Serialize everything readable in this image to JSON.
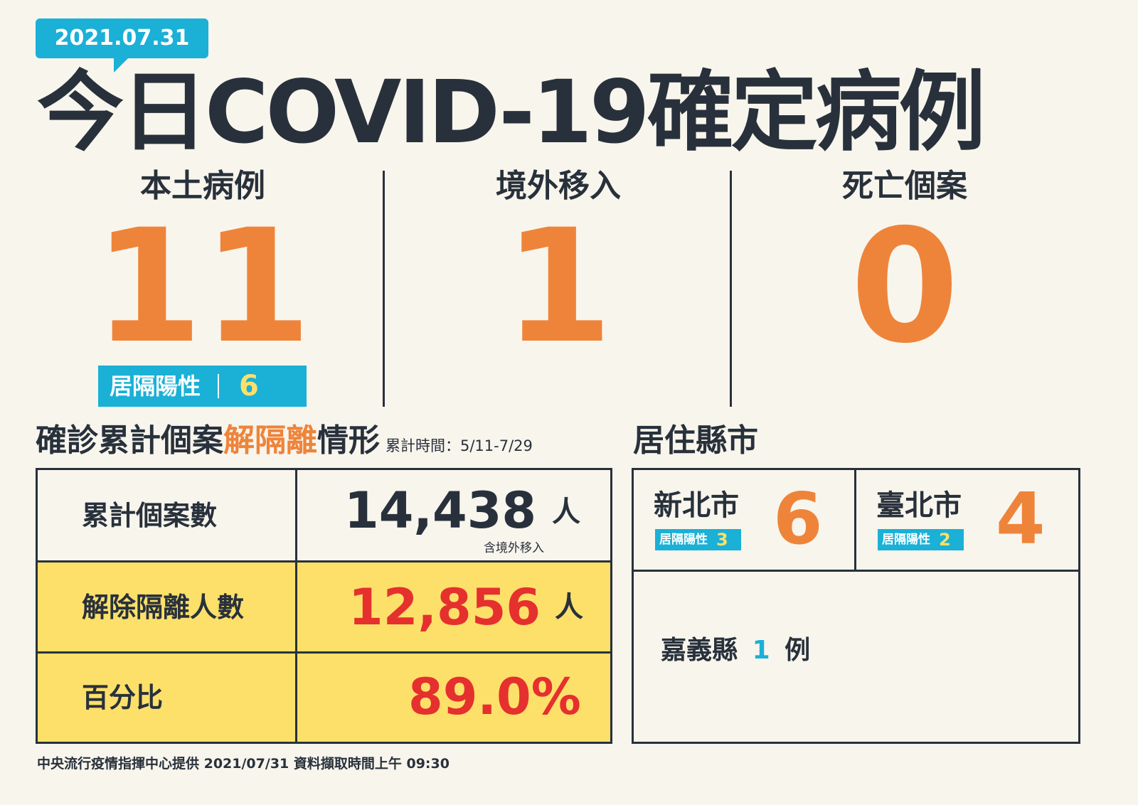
{
  "date": "2021.07.31",
  "title": "今日COVID-19確定病例",
  "stats": [
    {
      "label": "本土病例",
      "value": "11"
    },
    {
      "label": "境外移入",
      "value": "1"
    },
    {
      "label": "死亡個案",
      "value": "0"
    }
  ],
  "home_isolation": {
    "label": "居隔陽性",
    "value": "6"
  },
  "release_section": {
    "title_a": "確診累計個案",
    "title_b": "解隔離",
    "title_c": "情形",
    "note": "累計時間：5/11-7/29"
  },
  "table": {
    "total_label": "累計個案數",
    "total_value": "14,438",
    "total_unit": "人",
    "total_note": "含境外移入",
    "released_label": "解除隔離人數",
    "released_value": "12,856",
    "released_unit": "人",
    "pct_label": "百分比",
    "pct_value": "89.0%"
  },
  "residence": {
    "title": "居住縣市",
    "cities": [
      {
        "name": "新北市",
        "tag": "居隔陽性",
        "tag_value": "3",
        "count": "6"
      },
      {
        "name": "臺北市",
        "tag": "居隔陽性",
        "tag_value": "2",
        "count": "4"
      }
    ],
    "other": {
      "name": "嘉義縣",
      "count": "1",
      "unit": "例"
    }
  },
  "footer": "中央流行疫情指揮中心提供 2021/07/31 資料擷取時間上午 09:30",
  "colors": {
    "background": "#f8f5ed",
    "dark": "#28313b",
    "orange": "#ee843a",
    "blue": "#1bb0d6",
    "yellow": "#fde06a",
    "red": "#e5302e"
  }
}
